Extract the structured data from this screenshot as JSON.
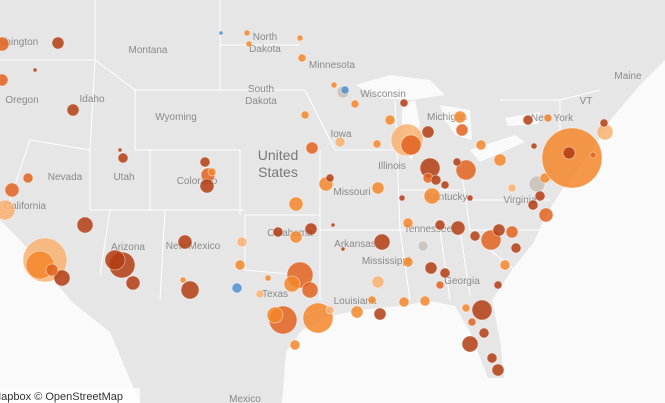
{
  "map": {
    "labels": [
      "Washington",
      "Oregon",
      "California",
      "Nevada",
      "Idaho",
      "Montana",
      "Wyoming",
      "Utah",
      "Colorado",
      "Arizona",
      "New Mexico",
      "North",
      "Dakota",
      "South",
      "Dakota",
      "Minnesota",
      "Iowa",
      "Wisconsin",
      "Michigan",
      "Illinois",
      "Missouri",
      "Kentucky",
      "Tennessee",
      "Arkansas",
      "Oklahoma",
      "Texas",
      "Louisiana",
      "Mississippi",
      "Georgia",
      "Virginia",
      "New York",
      "VT",
      "Maine",
      "Mexico"
    ],
    "country": [
      "United",
      "States"
    ],
    "attribution": "Mapbox © OpenStreetMap"
  }
}
